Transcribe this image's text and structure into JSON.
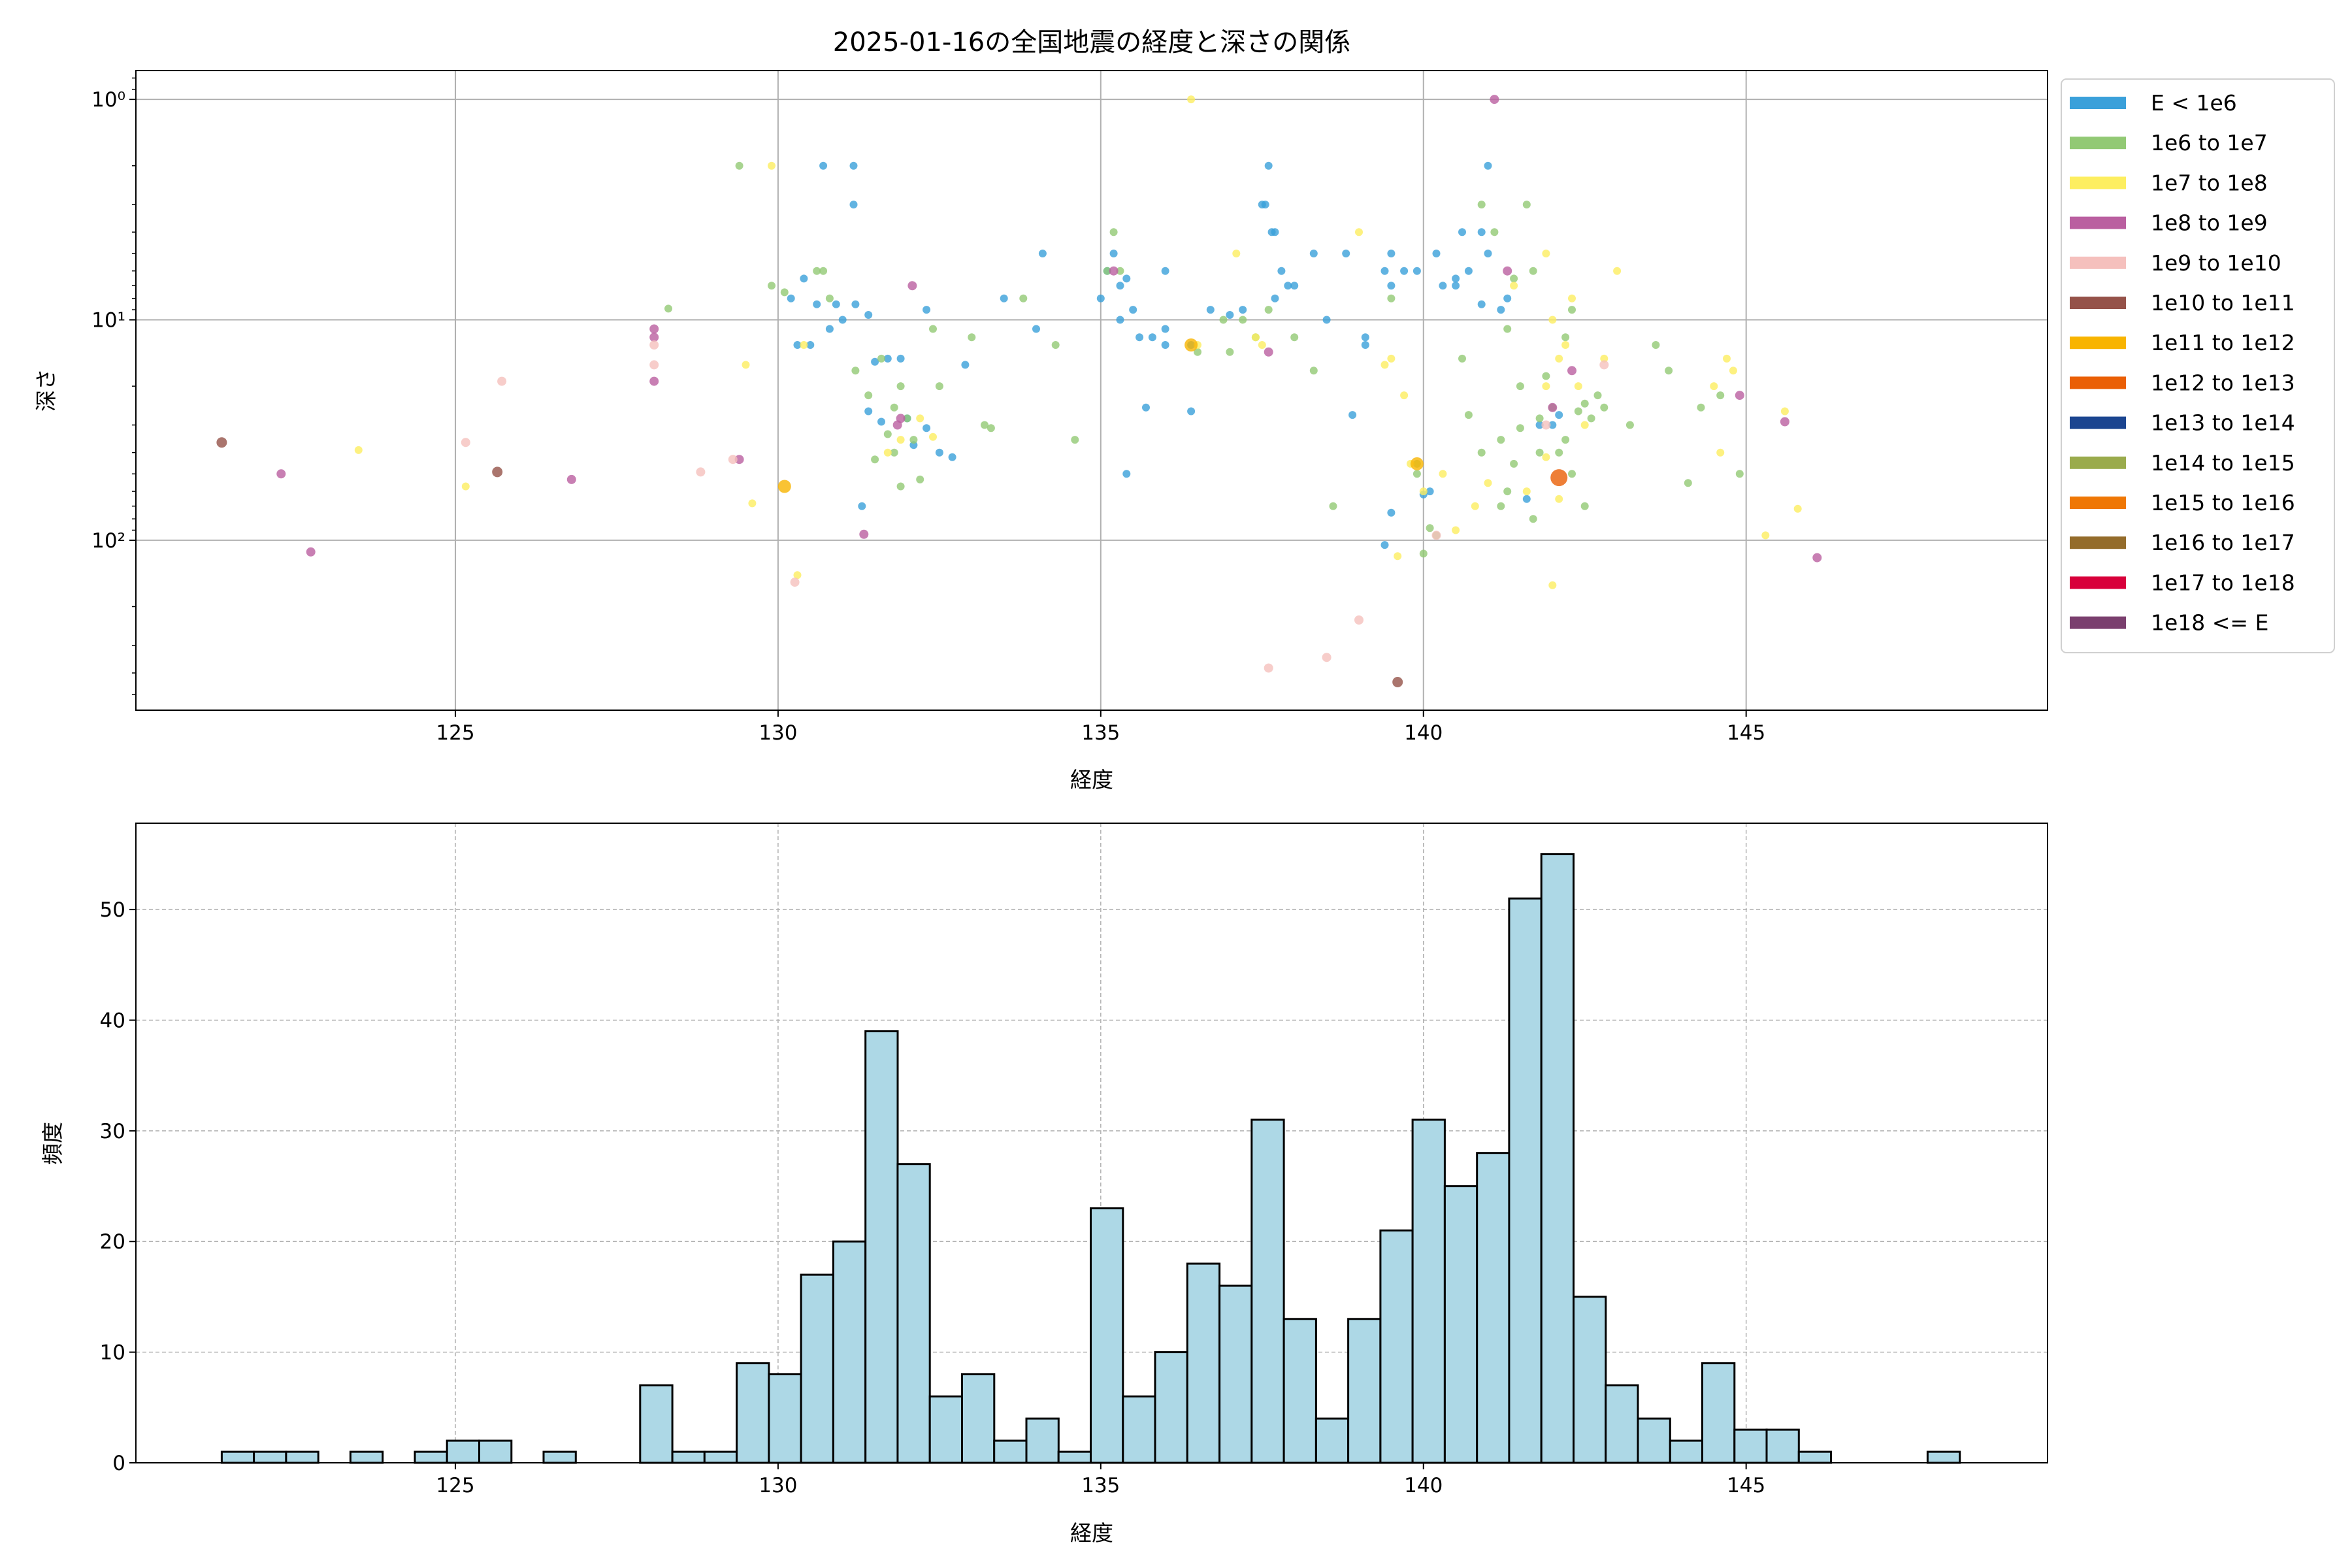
{
  "chart_data": [
    {
      "type": "scatter",
      "title": "2025-01-16の全国地震の経度と深さの関係",
      "xlabel": "経度",
      "ylabel": "深さ",
      "xlim": [
        120.05,
        149.67
      ],
      "ylim": [
        590,
        0.74
      ],
      "yscale": "log",
      "y_inverted": true,
      "grid": true,
      "xticks": [
        125,
        130,
        135,
        140,
        145
      ],
      "xtick_labels": [
        "125",
        "130",
        "135",
        "140",
        "145"
      ],
      "yticks": [
        1,
        10,
        100
      ],
      "ytick_labels": [
        "10⁰",
        "10¹",
        "10²"
      ],
      "legend": {
        "placement": "outside-right-top",
        "entries": [
          "E < 1e6",
          "1e6 to 1e7",
          "1e7 to 1e8",
          "1e8 to 1e9",
          "1e9 to 1e10",
          "1e10 to 1e11",
          "1e11 to 1e12",
          "1e12 to 1e13",
          "1e13 to 1e14",
          "1e14 to 1e15",
          "1e15 to 1e16",
          "1e16 to 1e17",
          "1e17 to 1e18",
          "1e18 <= E"
        ],
        "colors": [
          "#3aa0da",
          "#92c974",
          "#fdee60",
          "#ba5fa0",
          "#f5c0bd",
          "#955249",
          "#f8b400",
          "#ea5f05",
          "#1b4590",
          "#9aab4c",
          "#ef7705",
          "#946c2b",
          "#d8003b",
          "#7a3f6e"
        ]
      },
      "points_format": [
        "longitude",
        "depth",
        "energy_class_index"
      ],
      "points": [
        [
          130.7,
          2,
          0
        ],
        [
          131.17,
          2,
          0
        ],
        [
          131.17,
          3,
          0
        ],
        [
          130.4,
          6.5,
          0
        ],
        [
          130.6,
          8.5,
          0
        ],
        [
          130.2,
          8,
          0
        ],
        [
          130.9,
          8.5,
          0
        ],
        [
          131.2,
          8.5,
          0
        ],
        [
          131.4,
          9.5,
          0
        ],
        [
          130.3,
          13,
          0
        ],
        [
          130.5,
          13,
          0
        ],
        [
          130.8,
          11,
          0
        ],
        [
          131.0,
          10,
          0
        ],
        [
          131.7,
          15,
          0
        ],
        [
          131.9,
          15,
          0
        ],
        [
          131.5,
          15.5,
          0
        ],
        [
          131.4,
          26,
          0
        ],
        [
          131.6,
          29,
          0
        ],
        [
          132.0,
          28,
          0
        ],
        [
          132.3,
          31,
          0
        ],
        [
          132.5,
          40,
          0
        ],
        [
          132.1,
          37,
          0
        ],
        [
          132.7,
          42,
          0
        ],
        [
          131.3,
          70,
          0
        ],
        [
          132.3,
          9,
          0
        ],
        [
          132.9,
          16,
          0
        ],
        [
          134.1,
          5,
          0
        ],
        [
          134.0,
          11,
          0
        ],
        [
          133.5,
          8,
          0
        ],
        [
          135.1,
          6,
          0
        ],
        [
          135.2,
          5,
          0
        ],
        [
          135.3,
          7,
          0
        ],
        [
          135.4,
          6.5,
          0
        ],
        [
          135.0,
          8,
          0
        ],
        [
          135.5,
          9,
          0
        ],
        [
          135.3,
          10,
          0
        ],
        [
          135.6,
          12,
          0
        ],
        [
          135.8,
          12,
          0
        ],
        [
          136.0,
          11,
          0
        ],
        [
          136.0,
          13,
          0
        ],
        [
          136.0,
          6,
          0
        ],
        [
          135.7,
          25,
          0
        ],
        [
          135.4,
          50,
          0
        ],
        [
          136.4,
          13,
          0
        ],
        [
          136.4,
          26,
          0
        ],
        [
          136.7,
          9,
          0
        ],
        [
          137.0,
          9.5,
          0
        ],
        [
          137.2,
          9,
          0
        ],
        [
          137.5,
          3,
          0
        ],
        [
          137.6,
          2,
          0
        ],
        [
          137.55,
          3,
          0
        ],
        [
          137.65,
          4,
          0
        ],
        [
          137.8,
          6,
          0
        ],
        [
          137.7,
          4,
          0
        ],
        [
          137.7,
          8,
          0
        ],
        [
          137.9,
          7,
          0
        ],
        [
          138.0,
          7,
          0
        ],
        [
          138.3,
          5,
          0
        ],
        [
          138.5,
          10,
          0
        ],
        [
          138.8,
          5,
          0
        ],
        [
          138.9,
          27,
          0
        ],
        [
          139.1,
          13,
          0
        ],
        [
          139.1,
          12,
          0
        ],
        [
          139.4,
          6,
          0
        ],
        [
          139.5,
          5,
          0
        ],
        [
          139.5,
          7,
          0
        ],
        [
          139.7,
          6,
          0
        ],
        [
          139.9,
          6,
          0
        ],
        [
          140.2,
          5,
          0
        ],
        [
          140.3,
          7,
          0
        ],
        [
          140.5,
          7,
          0
        ],
        [
          140.6,
          4,
          0
        ],
        [
          140.7,
          6,
          0
        ],
        [
          140.9,
          4,
          0
        ],
        [
          141.0,
          2,
          0
        ],
        [
          141.0,
          5,
          0
        ],
        [
          141.2,
          9,
          0
        ],
        [
          140.1,
          60,
          0
        ],
        [
          140.0,
          62,
          0
        ],
        [
          139.4,
          105,
          0
        ],
        [
          139.5,
          75,
          0
        ],
        [
          141.8,
          30,
          0
        ],
        [
          142.0,
          30,
          0
        ],
        [
          141.6,
          65,
          0
        ],
        [
          142.1,
          27,
          0
        ],
        [
          141.3,
          8,
          0
        ],
        [
          140.9,
          8.5,
          0
        ],
        [
          140.5,
          6.5,
          0
        ],
        [
          129.4,
          2,
          1
        ],
        [
          129.9,
          7,
          1
        ],
        [
          130.1,
          7.5,
          1
        ],
        [
          130.6,
          6,
          1
        ],
        [
          130.8,
          8,
          1
        ],
        [
          130.7,
          6,
          1
        ],
        [
          131.2,
          17,
          1
        ],
        [
          131.4,
          22,
          1
        ],
        [
          131.6,
          15,
          1
        ],
        [
          131.8,
          25,
          1
        ],
        [
          131.9,
          20,
          1
        ],
        [
          132.0,
          28,
          1
        ],
        [
          131.7,
          33,
          1
        ],
        [
          131.8,
          40,
          1
        ],
        [
          131.5,
          43,
          1
        ],
        [
          132.1,
          35,
          1
        ],
        [
          131.9,
          57,
          1
        ],
        [
          132.2,
          53,
          1
        ],
        [
          132.4,
          11,
          1
        ],
        [
          132.5,
          20,
          1
        ],
        [
          133.0,
          12,
          1
        ],
        [
          133.3,
          31,
          1
        ],
        [
          133.2,
          30,
          1
        ],
        [
          134.3,
          13,
          1
        ],
        [
          134.6,
          35,
          1
        ],
        [
          133.8,
          8,
          1
        ],
        [
          135.2,
          4,
          1
        ],
        [
          135.3,
          6,
          1
        ],
        [
          135.1,
          6,
          1
        ],
        [
          136.5,
          14,
          1
        ],
        [
          136.9,
          10,
          1
        ],
        [
          137.2,
          10,
          1
        ],
        [
          137.4,
          12,
          1
        ],
        [
          137.0,
          14,
          1
        ],
        [
          137.6,
          9,
          1
        ],
        [
          138.3,
          17,
          1
        ],
        [
          138.0,
          12,
          1
        ],
        [
          138.6,
          70,
          1
        ],
        [
          139.5,
          8,
          1
        ],
        [
          139.9,
          45,
          1
        ],
        [
          139.9,
          50,
          1
        ],
        [
          140.0,
          115,
          1
        ],
        [
          140.1,
          88,
          1
        ],
        [
          140.2,
          95,
          1
        ],
        [
          140.6,
          15,
          1
        ],
        [
          140.7,
          27,
          1
        ],
        [
          140.9,
          3,
          1
        ],
        [
          141.1,
          4,
          1
        ],
        [
          141.3,
          11,
          1
        ],
        [
          141.4,
          6.5,
          1
        ],
        [
          141.6,
          3,
          1
        ],
        [
          141.7,
          6,
          1
        ],
        [
          141.5,
          31,
          1
        ],
        [
          141.4,
          45,
          1
        ],
        [
          141.3,
          60,
          1
        ],
        [
          141.2,
          70,
          1
        ],
        [
          141.7,
          80,
          1
        ],
        [
          141.8,
          40,
          1
        ],
        [
          141.9,
          18,
          1
        ],
        [
          142.0,
          25,
          1
        ],
        [
          142.1,
          40,
          1
        ],
        [
          142.2,
          35,
          1
        ],
        [
          142.3,
          50,
          1
        ],
        [
          142.4,
          26,
          1
        ],
        [
          142.5,
          70,
          1
        ],
        [
          142.2,
          12,
          1
        ],
        [
          142.3,
          9,
          1
        ],
        [
          142.5,
          24,
          1
        ],
        [
          142.6,
          28,
          1
        ],
        [
          142.7,
          22,
          1
        ],
        [
          142.8,
          25,
          1
        ],
        [
          143.2,
          30,
          1
        ],
        [
          143.6,
          13,
          1
        ],
        [
          143.8,
          17,
          1
        ],
        [
          144.1,
          55,
          1
        ],
        [
          144.3,
          25,
          1
        ],
        [
          144.6,
          22,
          1
        ],
        [
          144.9,
          50,
          1
        ],
        [
          141.8,
          28,
          1
        ],
        [
          141.5,
          20,
          1
        ],
        [
          141.2,
          35,
          1
        ],
        [
          140.9,
          40,
          1
        ],
        [
          128.3,
          8.9,
          1
        ],
        [
          129.9,
          2,
          2
        ],
        [
          129.5,
          16,
          2
        ],
        [
          129.6,
          68,
          2
        ],
        [
          130.3,
          144,
          2
        ],
        [
          130.4,
          13,
          2
        ],
        [
          131.7,
          40,
          2
        ],
        [
          131.9,
          35,
          2
        ],
        [
          132.2,
          28,
          2
        ],
        [
          132.4,
          34,
          2
        ],
        [
          136.4,
          1,
          2
        ],
        [
          136.5,
          13,
          2
        ],
        [
          137.1,
          5,
          2
        ],
        [
          137.4,
          12,
          2
        ],
        [
          137.5,
          13,
          2
        ],
        [
          139.0,
          4,
          2
        ],
        [
          139.5,
          15,
          2
        ],
        [
          139.7,
          22,
          2
        ],
        [
          139.8,
          45,
          2
        ],
        [
          140.0,
          60,
          2
        ],
        [
          140.3,
          50,
          2
        ],
        [
          140.5,
          90,
          2
        ],
        [
          140.8,
          70,
          2
        ],
        [
          141.0,
          55,
          2
        ],
        [
          141.4,
          7,
          2
        ],
        [
          141.6,
          60,
          2
        ],
        [
          141.9,
          5,
          2
        ],
        [
          141.9,
          20,
          2
        ],
        [
          142.0,
          10,
          2
        ],
        [
          142.1,
          15,
          2
        ],
        [
          142.0,
          160,
          2
        ],
        [
          142.2,
          13,
          2
        ],
        [
          142.3,
          8,
          2
        ],
        [
          142.4,
          20,
          2
        ],
        [
          143.0,
          6,
          2
        ],
        [
          142.5,
          30,
          2
        ],
        [
          142.8,
          15,
          2
        ],
        [
          144.5,
          20,
          2
        ],
        [
          144.6,
          40,
          2
        ],
        [
          144.7,
          15,
          2
        ],
        [
          144.8,
          17,
          2
        ],
        [
          145.3,
          95,
          2
        ],
        [
          145.6,
          26,
          2
        ],
        [
          145.8,
          72,
          2
        ],
        [
          139.6,
          118,
          2
        ],
        [
          141.9,
          42,
          2
        ],
        [
          139.4,
          16,
          2
        ],
        [
          142.1,
          65,
          2
        ],
        [
          123.5,
          39,
          2
        ],
        [
          125.16,
          57,
          2
        ],
        [
          122.3,
          50,
          3
        ],
        [
          122.76,
          113,
          3
        ],
        [
          126.8,
          53,
          3
        ],
        [
          128.08,
          11,
          3
        ],
        [
          128.08,
          12,
          3
        ],
        [
          128.08,
          19,
          3
        ],
        [
          129.4,
          43,
          3
        ],
        [
          131.33,
          94,
          3
        ],
        [
          132.08,
          7,
          3
        ],
        [
          131.9,
          28,
          3
        ],
        [
          131.85,
          30,
          3
        ],
        [
          135.2,
          6,
          3
        ],
        [
          137.6,
          14,
          3
        ],
        [
          141.1,
          1,
          3
        ],
        [
          141.3,
          6,
          3
        ],
        [
          142.0,
          25,
          3
        ],
        [
          142.3,
          17,
          3
        ],
        [
          145.6,
          29,
          3
        ],
        [
          146.1,
          120,
          3
        ],
        [
          144.9,
          22,
          3
        ],
        [
          125.16,
          36,
          4
        ],
        [
          125.72,
          19,
          4
        ],
        [
          128.08,
          13,
          4
        ],
        [
          128.08,
          16,
          4
        ],
        [
          128.8,
          49,
          4
        ],
        [
          129.3,
          43,
          4
        ],
        [
          130.26,
          155,
          4
        ],
        [
          137.6,
          380,
          4
        ],
        [
          138.5,
          340,
          4
        ],
        [
          139.0,
          230,
          4
        ],
        [
          140.2,
          95,
          4
        ],
        [
          142.8,
          16,
          4
        ],
        [
          141.9,
          30,
          4
        ],
        [
          121.38,
          36,
          5
        ],
        [
          125.65,
          49,
          5
        ],
        [
          139.6,
          440,
          5
        ],
        [
          130.1,
          57,
          6
        ],
        [
          136.4,
          13,
          6
        ],
        [
          139.9,
          45,
          6
        ],
        [
          142.1,
          52,
          7
        ]
      ]
    },
    {
      "type": "bar",
      "subtype": "histogram",
      "xlabel": "経度",
      "ylabel": "頻度",
      "xlim": [
        120.05,
        149.67
      ],
      "ylim": [
        0,
        57.8
      ],
      "grid": true,
      "grid_style": "dashed",
      "bin_start": 121.38,
      "bin_width": 0.4987,
      "values": [
        1,
        1,
        1,
        0,
        1,
        0,
        1,
        2,
        2,
        0,
        1,
        0,
        0,
        7,
        1,
        1,
        9,
        8,
        17,
        20,
        39,
        27,
        6,
        8,
        2,
        4,
        1,
        23,
        6,
        10,
        18,
        16,
        31,
        13,
        4,
        13,
        21,
        31,
        25,
        28,
        51,
        55,
        15,
        7,
        4,
        2,
        9,
        3,
        3,
        1,
        0,
        0,
        0,
        1
      ],
      "xticks": [
        125,
        130,
        135,
        140,
        145
      ],
      "xtick_labels": [
        "125",
        "130",
        "135",
        "140",
        "145"
      ],
      "yticks": [
        0,
        10,
        20,
        30,
        40,
        50
      ],
      "ytick_labels": [
        "0",
        "10",
        "20",
        "30",
        "40",
        "50"
      ],
      "bar_color": "#add8e6",
      "edge_color": "#000000"
    }
  ]
}
